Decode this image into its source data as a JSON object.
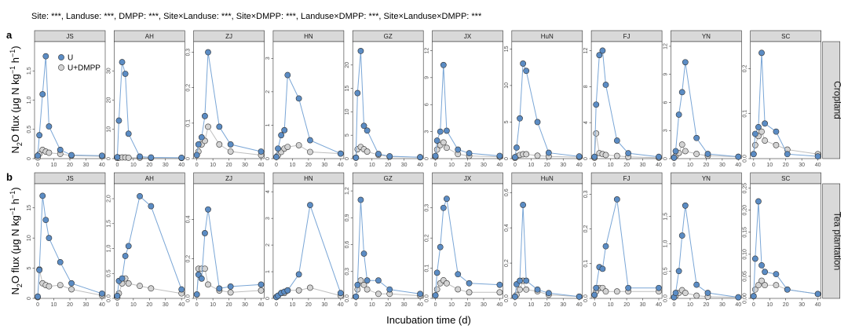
{
  "header": {
    "stats_text": "Site: ***, Landuse: ***, DMPP: ***, Site×Landuse: ***, Site×DMPP: ***, Landuse×DMPP: ***, Site×Landuse×DMPP: ***"
  },
  "axes": {
    "ylabel_prefix": "N",
    "ylabel_sub": "2",
    "ylabel_mid": "O flux (",
    "ylabel_mu": "μ",
    "ylabel_rest": "g N kg",
    "ylabel_sup1": "−1",
    "ylabel_h": " h",
    "ylabel_sup2": "−1",
    "ylabel_end": ")",
    "xlabel": "Incubation time (d)"
  },
  "legend": {
    "u": "U",
    "dmpp": "U+DMPP"
  },
  "colors": {
    "u_fill": "#5b8cc4",
    "u_line": "#7aa6d6",
    "dmpp_fill": "#d3d3d3",
    "dmpp_line": "#bfbfbf",
    "strip": "#d9d9d9",
    "panel_border": "#333333",
    "grid": "#e6e6e6"
  },
  "chart_data": {
    "type": "line",
    "x": [
      0,
      1,
      3,
      5,
      7,
      14,
      21,
      40
    ],
    "xticks": [
      0,
      10,
      20,
      30,
      40
    ],
    "xlim": [
      -2,
      42
    ],
    "rows": [
      {
        "tag": "a",
        "label": "Cropland",
        "panels": [
          {
            "site": "JS",
            "ylim": [
              0,
              2.0
            ],
            "yticks": [
              0,
              0.5,
              1.0,
              1.5
            ],
            "ytick_labels": [
              "0",
              "0,5",
              "1,0",
              "1,5"
            ],
            "u": [
              0.05,
              0.4,
              1.1,
              1.75,
              0.55,
              0.15,
              0.06,
              0.05
            ],
            "dmpp": [
              0.02,
              0.08,
              0.15,
              0.12,
              0.1,
              0.08,
              0.05,
              0.04
            ]
          },
          {
            "site": "AH",
            "ylim": [
              0,
              40
            ],
            "yticks": [
              0,
              10,
              20,
              30
            ],
            "ytick_labels": [
              "0",
              "10",
              "20",
              "30"
            ],
            "u": [
              0.5,
              13,
              33,
              29,
              8.5,
              0.7,
              0.4,
              0.3
            ],
            "dmpp": [
              0.2,
              0.3,
              0.4,
              0.4,
              0.3,
              0.3,
              0.2,
              0.2
            ]
          },
          {
            "site": "ZJ",
            "ylim": [
              0,
              0.33
            ],
            "yticks": [
              0,
              0.1,
              0.2,
              0.3
            ],
            "ytick_labels": [
              "0",
              "0,1",
              "0,2",
              "0,3"
            ],
            "u": [
              0.01,
              0.04,
              0.06,
              0.12,
              0.3,
              0.09,
              0.04,
              0.02
            ],
            "dmpp": [
              0.01,
              0.02,
              0.04,
              0.05,
              0.09,
              0.04,
              0.02,
              0.01
            ]
          },
          {
            "site": "HN",
            "ylim": [
              0,
              3.5
            ],
            "yticks": [
              0,
              1,
              2,
              3
            ],
            "ytick_labels": [
              "0",
              "1",
              "2",
              "3"
            ],
            "u": [
              0.05,
              0.3,
              0.7,
              0.85,
              2.5,
              1.8,
              0.55,
              0.15
            ],
            "dmpp": [
              0.05,
              0.1,
              0.2,
              0.3,
              0.35,
              0.4,
              0.2,
              0.15
            ]
          },
          {
            "site": "GZ",
            "ylim": [
              0,
              25
            ],
            "yticks": [
              0,
              5,
              10,
              15,
              20
            ],
            "ytick_labels": [
              "0",
              "5",
              "10",
              "15",
              "20"
            ],
            "u": [
              0.2,
              14,
              23,
              7,
              6,
              1,
              0.5,
              0.3
            ],
            "dmpp": [
              0.2,
              2,
              2.5,
              2,
              1.5,
              0.8,
              0.4,
              0.3
            ]
          },
          {
            "site": "JX",
            "ylim": [
              0,
              13
            ],
            "yticks": [
              0,
              3,
              6,
              9,
              12
            ],
            "ytick_labels": [
              "0",
              "3",
              "6",
              "9",
              "12"
            ],
            "u": [
              0.3,
              2,
              3,
              10.4,
              3.1,
              1,
              0.6,
              0.3
            ],
            "dmpp": [
              0.2,
              1,
              1.5,
              1.8,
              1.2,
              0.5,
              0.3,
              0.2
            ]
          },
          {
            "site": "HuN",
            "ylim": [
              0,
              16
            ],
            "yticks": [
              0,
              5,
              10,
              15
            ],
            "ytick_labels": [
              "0",
              "5",
              "10",
              "15"
            ],
            "u": [
              0.2,
              1.5,
              5.5,
              13,
              12,
              5,
              0.8,
              0.3
            ],
            "dmpp": [
              0.1,
              0.3,
              0.5,
              0.6,
              0.6,
              0.4,
              0.3,
              0.2
            ]
          },
          {
            "site": "FJ",
            "ylim": [
              0,
              13
            ],
            "yticks": [
              0,
              4,
              8,
              12
            ],
            "ytick_labels": [
              "0",
              "4",
              "8",
              "12"
            ],
            "u": [
              0.2,
              6,
              11.5,
              12,
              8.2,
              2,
              0.6,
              0.2
            ],
            "dmpp": [
              0.1,
              2.8,
              0.6,
              0.5,
              0.4,
              0.3,
              0.2,
              0.1
            ]
          },
          {
            "site": "YN",
            "ylim": [
              0,
              12.5
            ],
            "yticks": [
              0,
              3,
              6,
              9,
              12
            ],
            "ytick_labels": [
              "0",
              "3",
              "6",
              "9",
              "12"
            ],
            "u": [
              0.1,
              0.8,
              4.7,
              7.1,
              10.3,
              2.2,
              0.5,
              0.2
            ],
            "dmpp": [
              0.1,
              0.3,
              0.6,
              1.5,
              0.8,
              0.5,
              0.3,
              0.2
            ]
          },
          {
            "site": "SC",
            "ylim": [
              0,
              0.26
            ],
            "yticks": [
              0,
              0.1,
              0.2
            ],
            "ytick_labels": [
              "0,0",
              "0,1",
              "0,2"
            ],
            "u": [
              0.01,
              0.055,
              0.07,
              0.235,
              0.078,
              0.06,
              0.01,
              0.005
            ],
            "dmpp": [
              0.01,
              0.03,
              0.05,
              0.06,
              0.04,
              0.03,
              0.02,
              0.01
            ]
          }
        ]
      },
      {
        "tag": "b",
        "label": "Tea plantation",
        "panels": [
          {
            "site": "JS",
            "ylim": [
              0,
              19
            ],
            "yticks": [
              0,
              5,
              10,
              15
            ],
            "ytick_labels": [
              "0",
              "5",
              "10",
              "15"
            ],
            "u": [
              0.3,
              4.7,
              17,
              13,
              10,
              6,
              2.5,
              0.8
            ],
            "dmpp": [
              0.2,
              4.8,
              2.5,
              2.2,
              2,
              2.2,
              1.5,
              0.5
            ]
          },
          {
            "site": "AH",
            "ylim": [
              0,
              2.3
            ],
            "yticks": [
              0,
              0.5,
              1.0,
              1.5,
              2.0
            ],
            "ytick_labels": [
              "0,0",
              "0,5",
              "1,0",
              "1,5",
              "2,0"
            ],
            "u": [
              0.05,
              0.35,
              0.4,
              0.85,
              1.05,
              2.05,
              1.85,
              0.18
            ],
            "dmpp": [
              0.02,
              0.1,
              0.3,
              0.4,
              0.3,
              0.25,
              0.2,
              0.1
            ]
          },
          {
            "site": "ZJ",
            "ylim": [
              0,
              0.58
            ],
            "yticks": [
              0,
              0.2,
              0.4
            ],
            "ytick_labels": [
              "0,0",
              "0,2",
              "0,4"
            ],
            "u": [
              0.02,
              0.12,
              0.1,
              0.33,
              0.45,
              0.05,
              0.06,
              0.07
            ],
            "dmpp": [
              0.02,
              0.15,
              0.15,
              0.15,
              0.07,
              0.04,
              0.03,
              0.04
            ]
          },
          {
            "site": "HN",
            "ylim": [
              0,
              4.3
            ],
            "yticks": [
              0,
              1,
              2,
              3,
              4
            ],
            "ytick_labels": [
              "0",
              "1",
              "2",
              "3",
              "4"
            ],
            "u": [
              0.05,
              0.1,
              0.2,
              0.25,
              0.3,
              0.9,
              3.5,
              0.2
            ],
            "dmpp": [
              0.05,
              0.1,
              0.2,
              0.2,
              0.3,
              0.3,
              0.4,
              0.1
            ]
          },
          {
            "site": "GZ",
            "ylim": [
              0,
              1.28
            ],
            "yticks": [
              0,
              0.3,
              0.6,
              0.9,
              1.2
            ],
            "ytick_labels": [
              "0,0",
              "0,3",
              "0,6",
              "0,9",
              "1,2"
            ],
            "u": [
              0.02,
              0.15,
              1.1,
              0.5,
              0.2,
              0.2,
              0.1,
              0.05
            ],
            "dmpp": [
              0.02,
              0.1,
              0.2,
              0.15,
              0.1,
              0.05,
              0.05,
              0.03
            ]
          },
          {
            "site": "JX",
            "ylim": [
              0,
              0.38
            ],
            "yticks": [
              0,
              0.1,
              0.2,
              0.3
            ],
            "ytick_labels": [
              "0,0",
              "0,1",
              "0,2",
              "0,3"
            ],
            "u": [
              0.01,
              0.085,
              0.17,
              0.3,
              0.33,
              0.08,
              0.05,
              0.045
            ],
            "dmpp": [
              0.01,
              0.03,
              0.05,
              0.06,
              0.05,
              0.03,
              0.02,
              0.02
            ]
          },
          {
            "site": "HuN",
            "ylim": [
              0,
              0.65
            ],
            "yticks": [
              0,
              0.2,
              0.4,
              0.6
            ],
            "ytick_labels": [
              "0,0",
              "0,2",
              "0,4",
              "0,6"
            ],
            "u": [
              0.01,
              0.08,
              0.1,
              0.53,
              0.1,
              0.05,
              0.03,
              0.01
            ],
            "dmpp": [
              0.01,
              0.02,
              0.05,
              0.1,
              0.05,
              0.04,
              0.02,
              0.01
            ]
          },
          {
            "site": "FJ",
            "ylim": [
              0,
              0.33
            ],
            "yticks": [
              0,
              0.1,
              0.2,
              0.3
            ],
            "ytick_labels": [
              "0,0",
              "0,1",
              "0,2",
              "0,3"
            ],
            "u": [
              0.01,
              0.03,
              0.09,
              0.085,
              0.15,
              0.285,
              0.03,
              0.03
            ],
            "dmpp": [
              0.01,
              0.02,
              0.03,
              0.03,
              0.02,
              0.02,
              0.02,
              0.02
            ]
          },
          {
            "site": "YN",
            "ylim": [
              0,
              2.1
            ],
            "yticks": [
              0,
              0.5,
              1.0,
              1.5
            ],
            "ytick_labels": [
              "0,0",
              "0,5",
              "1,0",
              "1,5"
            ],
            "u": [
              0.02,
              0.1,
              0.5,
              1.15,
              1.7,
              0.25,
              0.1,
              0.02
            ],
            "dmpp": [
              0.02,
              0.05,
              0.1,
              0.15,
              0.1,
              0.05,
              0.03,
              0.02
            ]
          },
          {
            "site": "SC",
            "ylim": [
              0,
              0.26
            ],
            "yticks": [
              0,
              0.05,
              0.1,
              0.15,
              0.2,
              0.25
            ],
            "ytick_labels": [
              "0,00",
              "0,05",
              "0,10",
              "0,15",
              "0,20",
              "0,25"
            ],
            "u": [
              0.005,
              0.09,
              0.22,
              0.075,
              0.06,
              0.055,
              0.02,
              0.01
            ],
            "dmpp": [
              0.005,
              0.02,
              0.03,
              0.04,
              0.03,
              0.03,
              0.02,
              0.01
            ]
          }
        ]
      }
    ]
  }
}
